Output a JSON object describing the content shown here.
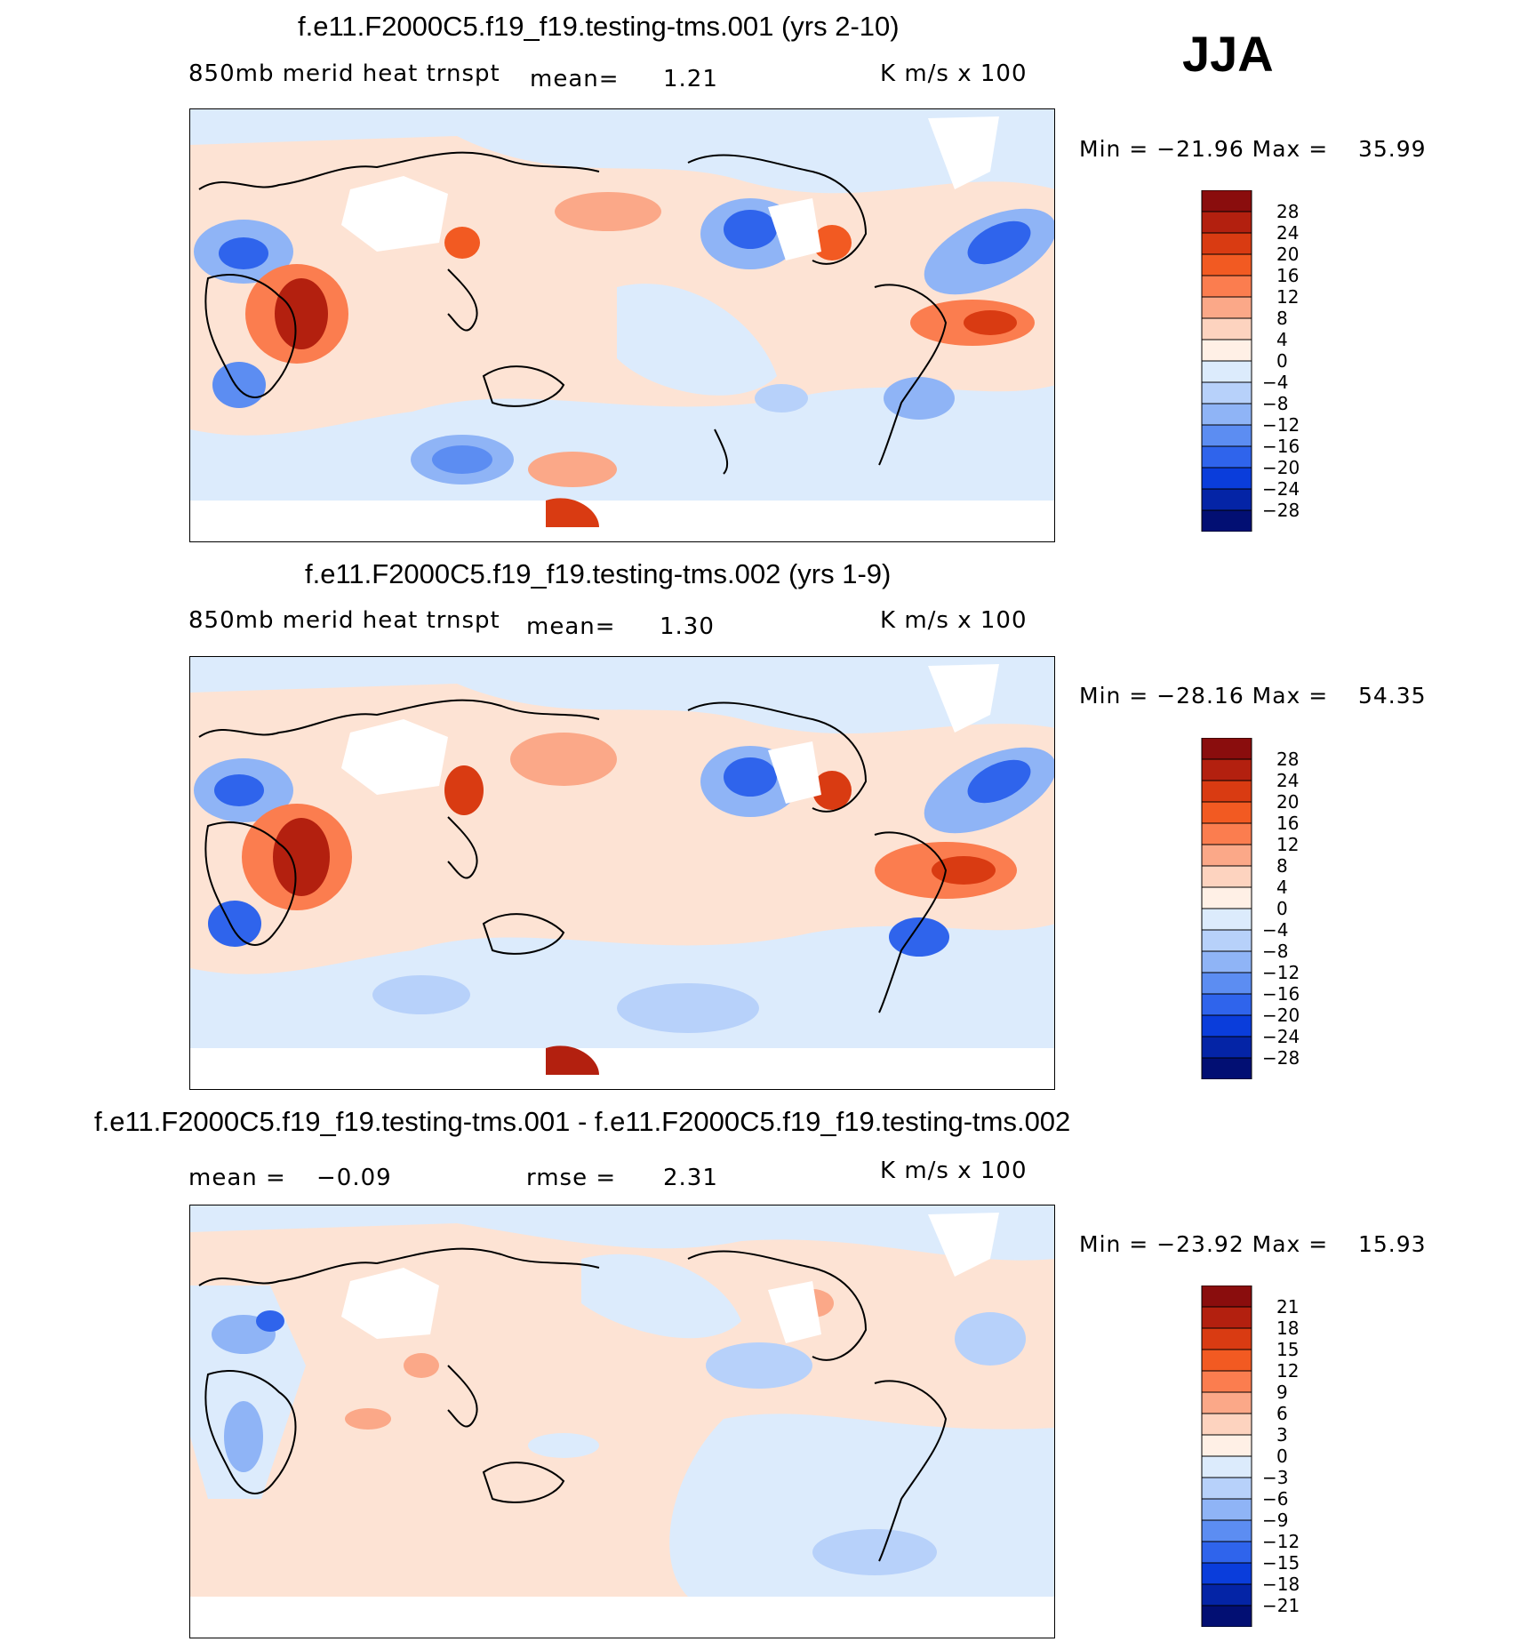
{
  "season": "JJA",
  "units": "K m/s x 100",
  "panels": [
    {
      "title": "f.e11.F2000C5.f19_f19.testing-tms.001 (yrs 2-10)",
      "variable": "850mb merid heat trnspt",
      "stat_label": "mean=",
      "stat_value": "1.21",
      "min_max": "Min = −21.96 Max =",
      "max_value": "35.99",
      "colorbar_levels": [
        "28",
        "24",
        "20",
        "16",
        "12",
        "8",
        "4",
        "0",
        "−4",
        "−8",
        "−12",
        "−16",
        "−20",
        "−24",
        "−28"
      ]
    },
    {
      "title": "f.e11.F2000C5.f19_f19.testing-tms.002 (yrs 1-9)",
      "variable": "850mb merid heat trnspt",
      "stat_label": "mean=",
      "stat_value": "1.30",
      "min_max": "Min = −28.16 Max =",
      "max_value": "54.35",
      "colorbar_levels": [
        "28",
        "24",
        "20",
        "16",
        "12",
        "8",
        "4",
        "0",
        "−4",
        "−8",
        "−12",
        "−16",
        "−20",
        "−24",
        "−28"
      ]
    },
    {
      "title": "f.e11.F2000C5.f19_f19.testing-tms.001 - f.e11.F2000C5.f19_f19.testing-tms.002",
      "variable": "",
      "stat_label": "mean =",
      "stat_value": "−0.09",
      "rmse_label": "rmse =",
      "rmse_value": "2.31",
      "min_max": "Min = −23.92 Max =",
      "max_value": "15.93",
      "colorbar_levels": [
        "21",
        "18",
        "15",
        "12",
        "9",
        "6",
        "3",
        "0",
        "−3",
        "−6",
        "−9",
        "−12",
        "−15",
        "−18",
        "−21"
      ]
    }
  ],
  "chart_data": [
    {
      "type": "heatmap",
      "title": "f.e11.F2000C5.f19_f19.testing-tms.001 (yrs 2-10)",
      "variable": "850mb merid heat trnspt",
      "units": "K m/s x 100",
      "mean": 1.21,
      "min": -21.96,
      "max": 35.99,
      "levels": [
        -28,
        -24,
        -20,
        -16,
        -12,
        -8,
        -4,
        0,
        4,
        8,
        12,
        16,
        20,
        24,
        28
      ]
    },
    {
      "type": "heatmap",
      "title": "f.e11.F2000C5.f19_f19.testing-tms.002 (yrs 1-9)",
      "variable": "850mb merid heat trnspt",
      "units": "K m/s x 100",
      "mean": 1.3,
      "min": -28.16,
      "max": 54.35,
      "levels": [
        -28,
        -24,
        -20,
        -16,
        -12,
        -8,
        -4,
        0,
        4,
        8,
        12,
        16,
        20,
        24,
        28
      ]
    },
    {
      "type": "heatmap",
      "title": "f.e11.F2000C5.f19_f19.testing-tms.001 - f.e11.F2000C5.f19_f19.testing-tms.002",
      "units": "K m/s x 100",
      "mean": -0.09,
      "rmse": 2.31,
      "min": -23.92,
      "max": 15.93,
      "levels": [
        -21,
        -18,
        -15,
        -12,
        -9,
        -6,
        -3,
        0,
        3,
        6,
        9,
        12,
        15,
        18,
        21
      ]
    }
  ],
  "colors": {
    "scale": [
      "#8a0d0d",
      "#b3200f",
      "#d93b12",
      "#f25a22",
      "#fb7d4f",
      "#fba888",
      "#fdd3bf",
      "#fff0e6",
      "#dcebfc",
      "#b7d1fa",
      "#8fb4f6",
      "#5c8df2",
      "#2f64ec",
      "#0a3ddb",
      "#0424a6",
      "#020f73"
    ]
  }
}
